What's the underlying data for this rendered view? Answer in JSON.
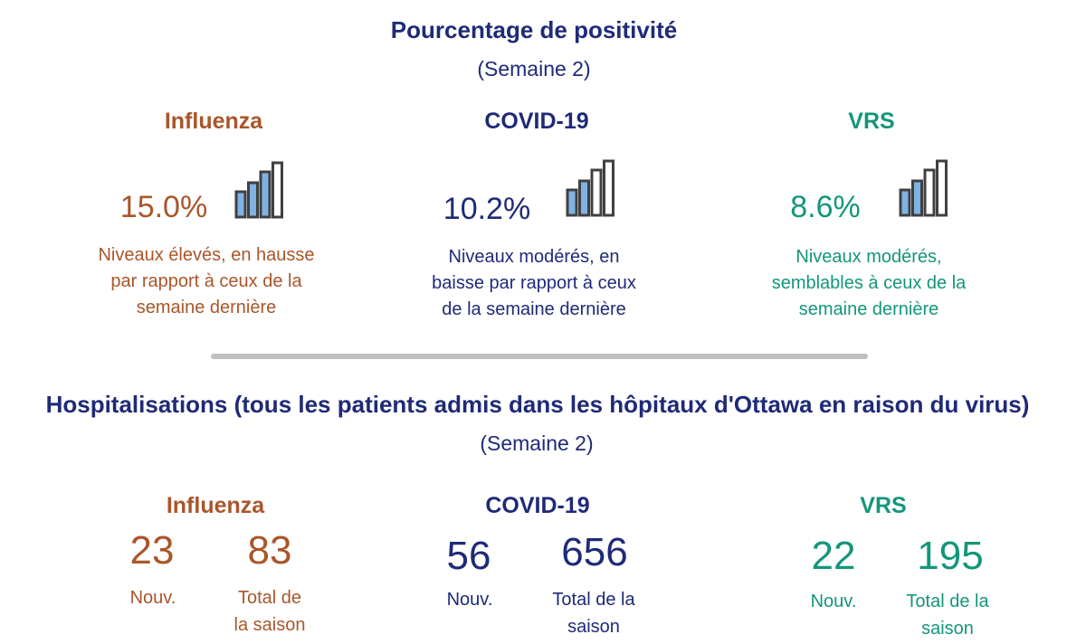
{
  "positivity": {
    "title": "Pourcentage de positivité",
    "week": "(Semaine 2)",
    "viruses": [
      {
        "name": "Influenza",
        "value": "15.0%",
        "description": [
          "Niveaux élevés,  en hausse",
          "par rapport à ceux de la",
          "semaine dernière"
        ],
        "trend_bars_filled": 3,
        "color": "#a9562a"
      },
      {
        "name": "COVID-19",
        "value": "10.2%",
        "description": [
          "Niveaux modérés, en",
          "baisse par rapport à ceux",
          "de la semaine dernière"
        ],
        "trend_bars_filled": 2,
        "color": "#1f2a78"
      },
      {
        "name": "VRS",
        "value": "8.6%",
        "description": [
          "Niveaux modérés,",
          "semblables à ceux de la",
          "semaine dernière"
        ],
        "trend_bars_filled": 2,
        "color": "#14967a"
      }
    ]
  },
  "hospitalizations": {
    "title": "Hospitalisations (tous les patients admis dans les hôpitaux d'Ottawa en raison du virus)",
    "week": "(Semaine 2)",
    "viruses": [
      {
        "name": "Influenza",
        "new_value": "23",
        "new_label": "Nouv.",
        "season_value": "83",
        "season_label": [
          "Total de",
          "la saison"
        ],
        "color": "#a9562a"
      },
      {
        "name": "COVID-19",
        "new_value": "56",
        "new_label": "Nouv.",
        "season_value": "656",
        "season_label": [
          "Total de la",
          "saison"
        ],
        "color": "#1f2a78"
      },
      {
        "name": "VRS",
        "new_value": "22",
        "new_label": "Nouv.",
        "season_value": "195",
        "season_label": [
          "Total de la",
          "saison"
        ],
        "color": "#14967a"
      }
    ]
  },
  "chart_data": {
    "type": "table",
    "columns": [
      "Influenza",
      "COVID-19",
      "VRS"
    ],
    "positivity_percent": [
      15.0,
      10.2,
      8.6
    ],
    "hosp_new": [
      23,
      56,
      22
    ],
    "hosp_season_total": [
      83,
      656,
      195
    ]
  },
  "icon": {
    "name": "bar-trend-icon",
    "fill_color": "#7fb2e5",
    "stroke_color": "#404040"
  }
}
